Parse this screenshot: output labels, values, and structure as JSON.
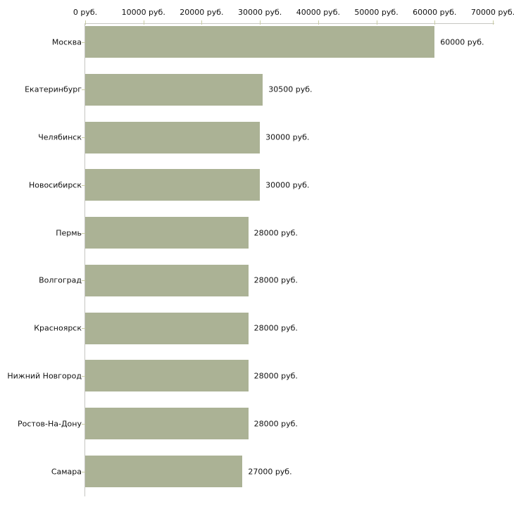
{
  "chart_data": {
    "type": "bar",
    "orientation": "horizontal",
    "title": "",
    "xlabel": "",
    "ylabel": "",
    "unit": "руб.",
    "categories": [
      "Москва",
      "Екатеринбург",
      "Челябинск",
      "Новосибирск",
      "Пермь",
      "Волгоград",
      "Красноярск",
      "Нижний Новгород",
      "Ростов-На-Дону",
      "Самара"
    ],
    "values": [
      60000,
      30500,
      30000,
      30000,
      28000,
      28000,
      28000,
      28000,
      28000,
      27000
    ],
    "value_labels": [
      "60000 руб.",
      "30500 руб.",
      "30000 руб.",
      "30000 руб.",
      "28000 руб.",
      "28000 руб.",
      "28000 руб.",
      "28000 руб.",
      "28000 руб.",
      "27000 руб."
    ],
    "xlim": [
      0,
      70000
    ],
    "x_ticks": [
      0,
      10000,
      20000,
      30000,
      40000,
      50000,
      60000,
      70000
    ],
    "x_tick_labels": [
      "0 руб.",
      "10000 руб.",
      "20000 руб.",
      "30000 руб.",
      "40000 руб.",
      "50000 руб.",
      "60000 руб.",
      "70000 руб."
    ],
    "grid": false,
    "legend": false,
    "axis_position": "top",
    "colors": {
      "bar_fill": "#abb295",
      "axis_line": "#c6c6c2",
      "tick_mark": "#c9cca4",
      "text": "#111111"
    }
  }
}
